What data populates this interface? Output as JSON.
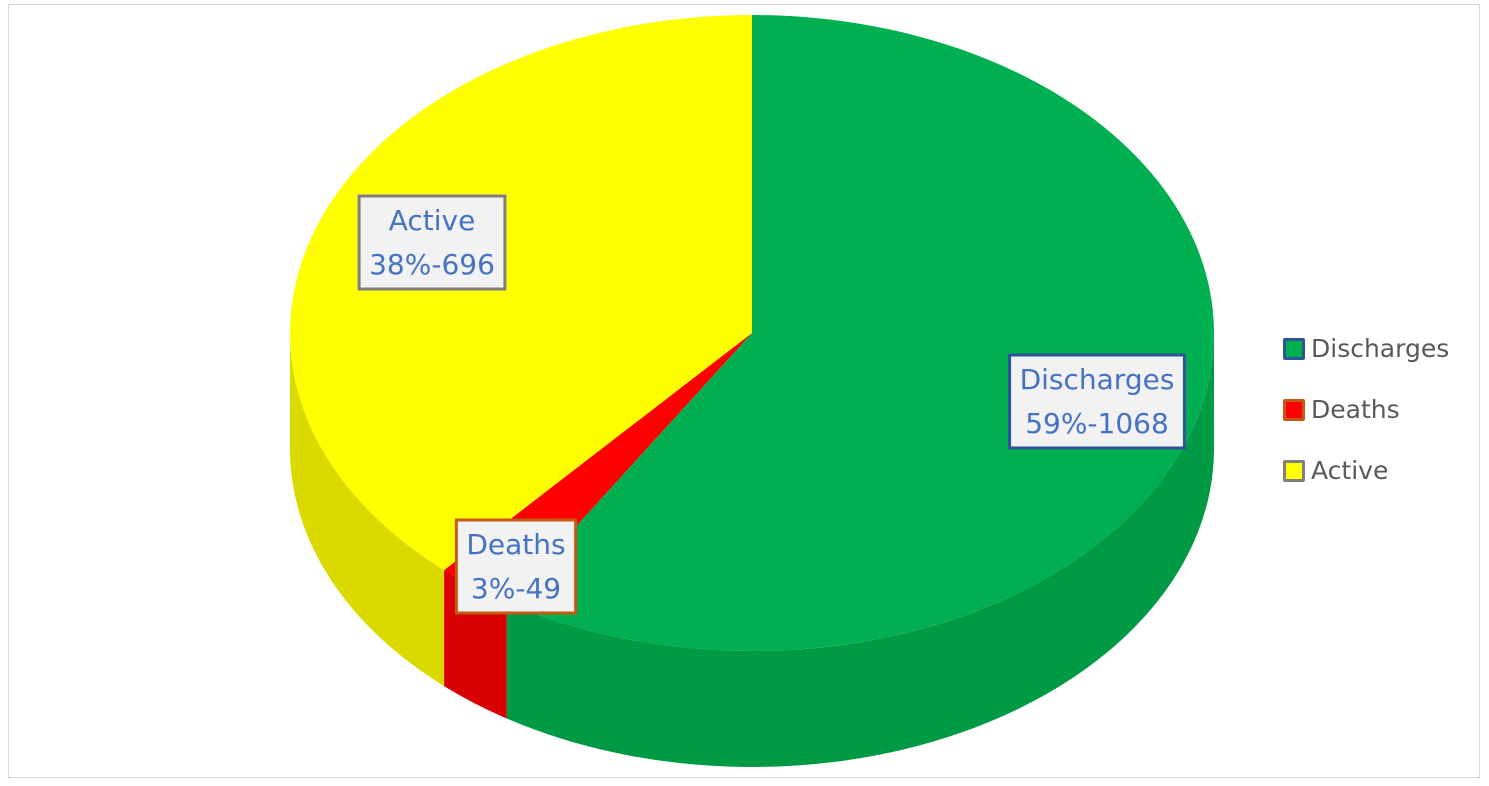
{
  "chart_data": {
    "type": "pie",
    "title": "",
    "series": [
      {
        "name": "Discharges",
        "value": 1068,
        "percent": "59%",
        "label_line1": "Discharges",
        "label_line2": "59%-1068",
        "color": "#00b050",
        "side_color": "#009a45",
        "legend_border": "#2f5597"
      },
      {
        "name": "Deaths",
        "value": 49,
        "percent": "3%",
        "label_line1": "Deaths",
        "label_line2": "3%-49",
        "color": "#ff0000",
        "side_color": "#d80000",
        "legend_border": "#c55a11"
      },
      {
        "name": "Active",
        "value": 696,
        "percent": "38%",
        "label_line1": "Active",
        "label_line2": "38%-696",
        "color": "#ffff00",
        "side_color": "#dada00",
        "legend_border": "#7f7f7f"
      }
    ],
    "legend": {
      "placement": "right",
      "items": [
        "Discharges",
        "Deaths",
        "Active"
      ]
    },
    "style": "3d-pie"
  }
}
